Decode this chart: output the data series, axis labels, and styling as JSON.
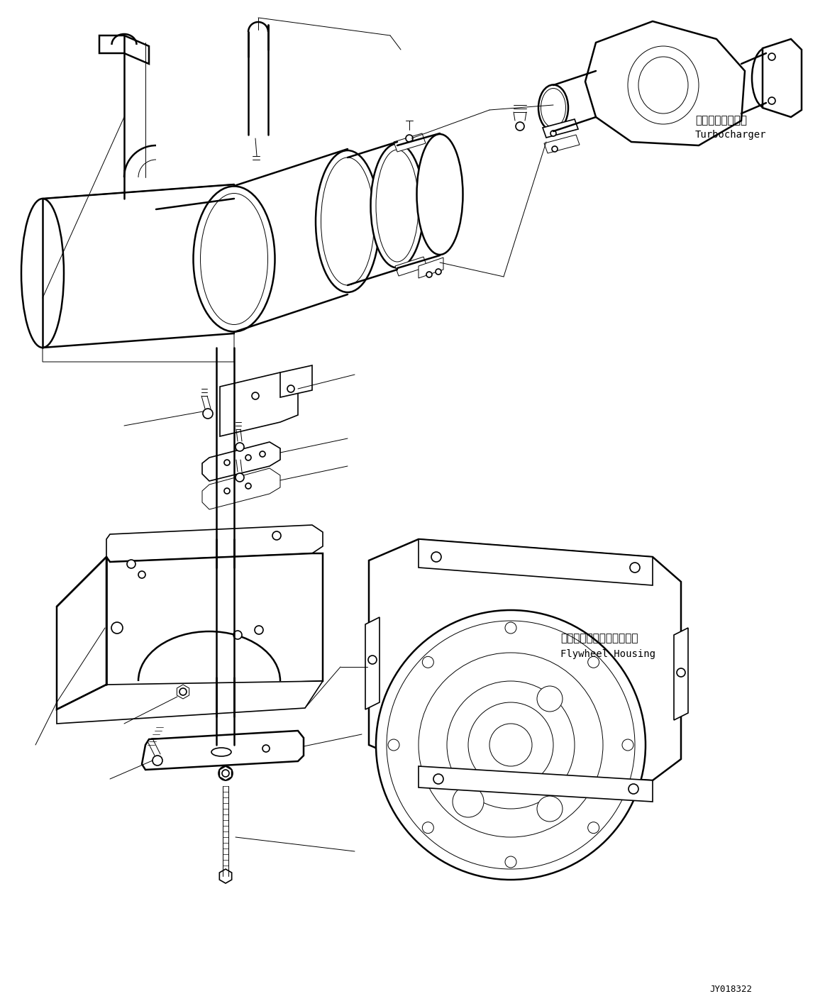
{
  "bg_color": "#ffffff",
  "line_color": "#000000",
  "fig_width": 11.63,
  "fig_height": 14.18,
  "dpi": 100,
  "label_turbocharger_jp": "ターボチャージャ",
  "label_turbocharger_en": "Turbocharger",
  "label_flywheel_jp": "フライホイールハウジング",
  "label_flywheel_en": "Flywheel Housing",
  "code": "JY018322",
  "font_size_jp": 11,
  "font_size_en": 10,
  "font_size_code": 9
}
